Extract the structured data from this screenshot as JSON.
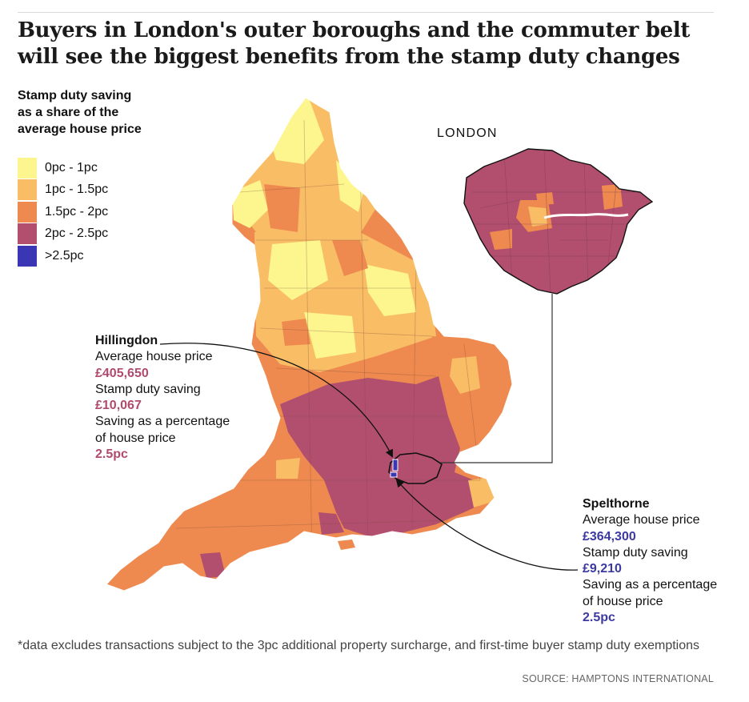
{
  "headline": "Buyers in London's outer boroughs and the commuter belt will see the biggest benefits from the stamp duty changes",
  "legend": {
    "title": "Stamp duty saving\nas a share of the\naverage house price",
    "items": [
      {
        "label": "0pc - 1pc",
        "color": "#fdf58e"
      },
      {
        "label": "1pc - 1.5pc",
        "color": "#f9bd66"
      },
      {
        "label": "1.5pc - 2pc",
        "color": "#ee8a4f"
      },
      {
        "label": "2pc - 2.5pc",
        "color": "#b24f6f"
      },
      {
        "label": ">2.5pc",
        "color": "#3a36b4"
      }
    ]
  },
  "inset_label": "LONDON",
  "callouts": {
    "hillingdon": {
      "name": "Hillingdon",
      "price_label": "Average house price",
      "price": "£405,650",
      "saving_label": "Stamp duty saving",
      "saving": "£10,067",
      "pct_label_1": "Saving as a percentage",
      "pct_label_2": "of house price",
      "pct": "2.5pc"
    },
    "spelthorne": {
      "name": "Spelthorne",
      "price_label": "Average house price",
      "price": "£364,300",
      "saving_label": "Stamp duty saving",
      "saving": "£9,210",
      "pct_label_1": "Saving as a percentage",
      "pct_label_2": "of house price",
      "pct": "2.5pc"
    }
  },
  "footnote": "*data excludes transactions subject to the 3pc additional property surcharge, and first-time buyer stamp duty exemptions",
  "source": "SOURCE: HAMPTONS INTERNATIONAL"
}
